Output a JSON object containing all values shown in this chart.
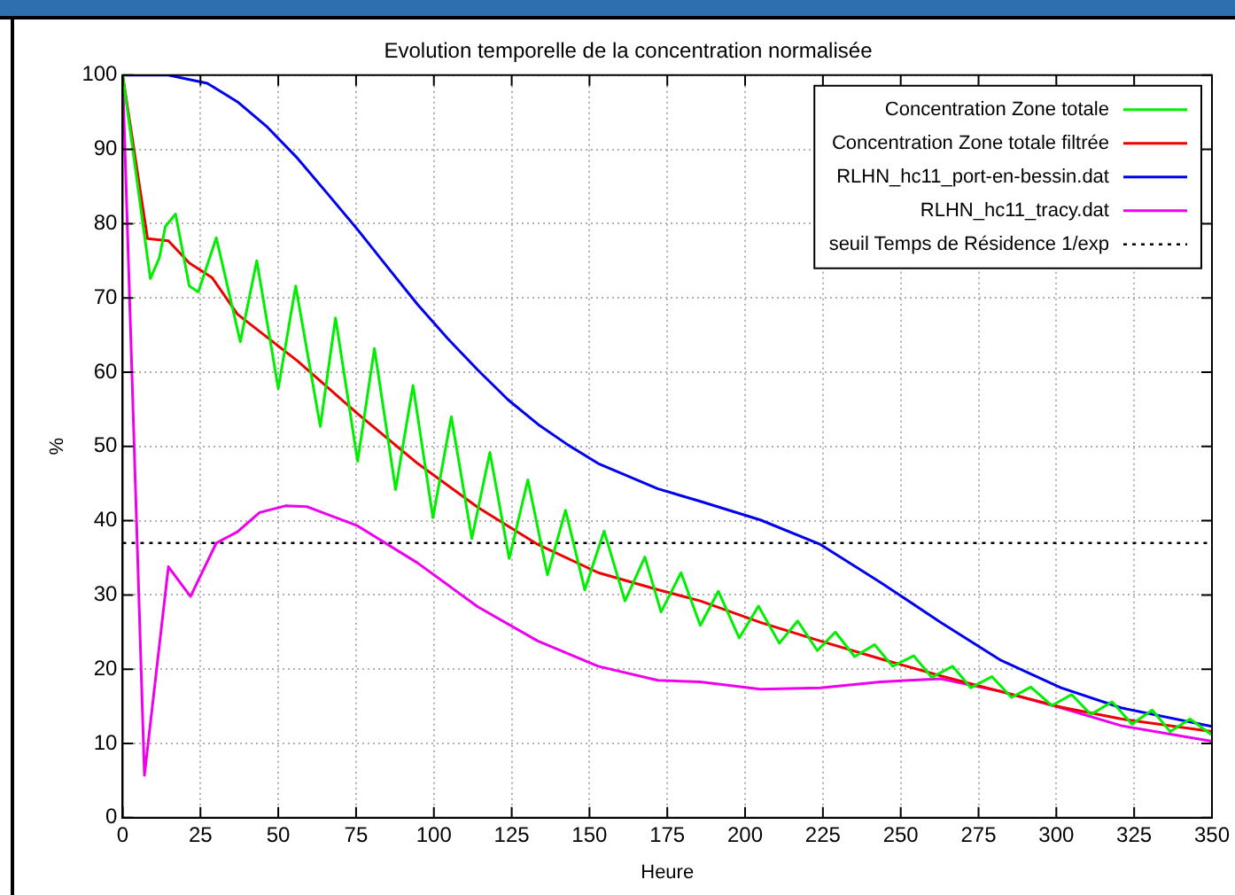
{
  "chart_data": {
    "type": "line",
    "title": "Evolution temporelle de la concentration normalisée",
    "xlabel": "Heure",
    "ylabel": "%",
    "xlim": [
      0,
      350
    ],
    "xticks": [
      0,
      25,
      50,
      75,
      100,
      125,
      150,
      175,
      200,
      225,
      250,
      275,
      300,
      325,
      350
    ],
    "ylim": [
      0,
      100
    ],
    "yticks": [
      0,
      10,
      20,
      30,
      40,
      50,
      60,
      70,
      80,
      90,
      100
    ],
    "grid": true,
    "legend": "top right",
    "marker": "none",
    "line_style": "solid",
    "ref_lines": [
      {
        "axis": "y",
        "value": 37,
        "label": "seuil Temps de Résidence 1/exp",
        "color": "#000000",
        "line_style": "dotted"
      }
    ],
    "series": [
      {
        "name": "Concentration Zone totale",
        "color": "#00ee00",
        "x": [
          0,
          8.9,
          11.8,
          13.7,
          17,
          21.4,
          24.3,
          30.1,
          37.8,
          43.1,
          50,
          55.6,
          63.5,
          68.4,
          75.5,
          80.9,
          87.7,
          93.3,
          99.7,
          105.6,
          112.2,
          118,
          124.2,
          130.2,
          136.5,
          142.3,
          148.5,
          154.7,
          161.4,
          167.8,
          173,
          179.4,
          185.6,
          191.4,
          198.1,
          204.3,
          211,
          216.9,
          223.2,
          229,
          235.2,
          241.6,
          247.4,
          254.2,
          260,
          266.7,
          272.5,
          279.3,
          285.6,
          291.8,
          298.6,
          304.9,
          311.1,
          317.9,
          324.3,
          330.8,
          336.6,
          343,
          349.8
        ],
        "values": [
          100,
          72.6,
          75.4,
          79.6,
          81.3,
          71.6,
          70.8,
          78.1,
          64.1,
          75,
          57.8,
          71.6,
          52.7,
          67.3,
          48,
          63.2,
          44.2,
          58.2,
          40.4,
          54,
          37.6,
          49.2,
          34.9,
          45.5,
          32.7,
          41.4,
          30.7,
          38.6,
          29.2,
          35.1,
          27.7,
          33,
          25.9,
          30.5,
          24.2,
          28.5,
          23.5,
          26.5,
          22.5,
          25,
          21.7,
          23.3,
          20.4,
          21.8,
          18.9,
          20.4,
          17.5,
          19,
          16.2,
          17.6,
          15.1,
          16.6,
          13.9,
          15.6,
          12.6,
          14.5,
          11.6,
          13.3,
          11.2
        ]
      },
      {
        "name": "Concentration Zone totale filtrée",
        "color": "#ee0000",
        "x": [
          0,
          8,
          14.7,
          21.4,
          28.8,
          36.9,
          56.2,
          75.5,
          94.8,
          114.1,
          133.4,
          152.8,
          172,
          185.6,
          204.9,
          224.2,
          243.5,
          262.9,
          282.2,
          301.5,
          320.8,
          350
        ],
        "values": [
          100,
          78,
          77.7,
          74.7,
          72.7,
          67.8,
          61.5,
          54.4,
          47.7,
          41.8,
          36.8,
          33,
          30.7,
          29.2,
          26.3,
          23.8,
          21.4,
          19.1,
          17,
          14.9,
          13.3,
          11.6
        ]
      },
      {
        "name": "RLHN_hc11_port-en-bessin.dat",
        "color": "#0000ee",
        "x": [
          0,
          14.7,
          27.2,
          36.9,
          46.5,
          56.2,
          65.9,
          75.5,
          85.2,
          94.8,
          104.5,
          114.1,
          123.8,
          133.4,
          143.1,
          152.8,
          172,
          185.6,
          204.9,
          224.2,
          243.5,
          262.9,
          282.2,
          301.5,
          320.8,
          350
        ],
        "values": [
          100,
          100,
          98.9,
          96.4,
          93,
          88.8,
          84,
          79.2,
          74.1,
          69.1,
          64.5,
          60.3,
          56.3,
          53,
          50.2,
          47.7,
          44.3,
          42.6,
          40.1,
          36.8,
          31.7,
          26.3,
          21.2,
          17.5,
          14.8,
          12.3
        ]
      },
      {
        "name": "RLHN_hc11_tracy.dat",
        "color": "#ee00ee",
        "x": [
          0,
          7,
          14.7,
          21.8,
          30.1,
          36.9,
          44,
          52.3,
          59.1,
          75.5,
          94.8,
          114.1,
          133.4,
          152.8,
          172,
          185.6,
          204.9,
          224.2,
          243.5,
          262.9,
          282.2,
          301.5,
          320.8,
          350
        ],
        "values": [
          100,
          5.7,
          33.8,
          29.8,
          37,
          38.5,
          41.1,
          42,
          41.9,
          39.3,
          34.3,
          28.4,
          23.8,
          20.4,
          18.5,
          18.3,
          17.3,
          17.5,
          18.3,
          18.7,
          17,
          14.8,
          12.4,
          10.3
        ]
      }
    ]
  }
}
